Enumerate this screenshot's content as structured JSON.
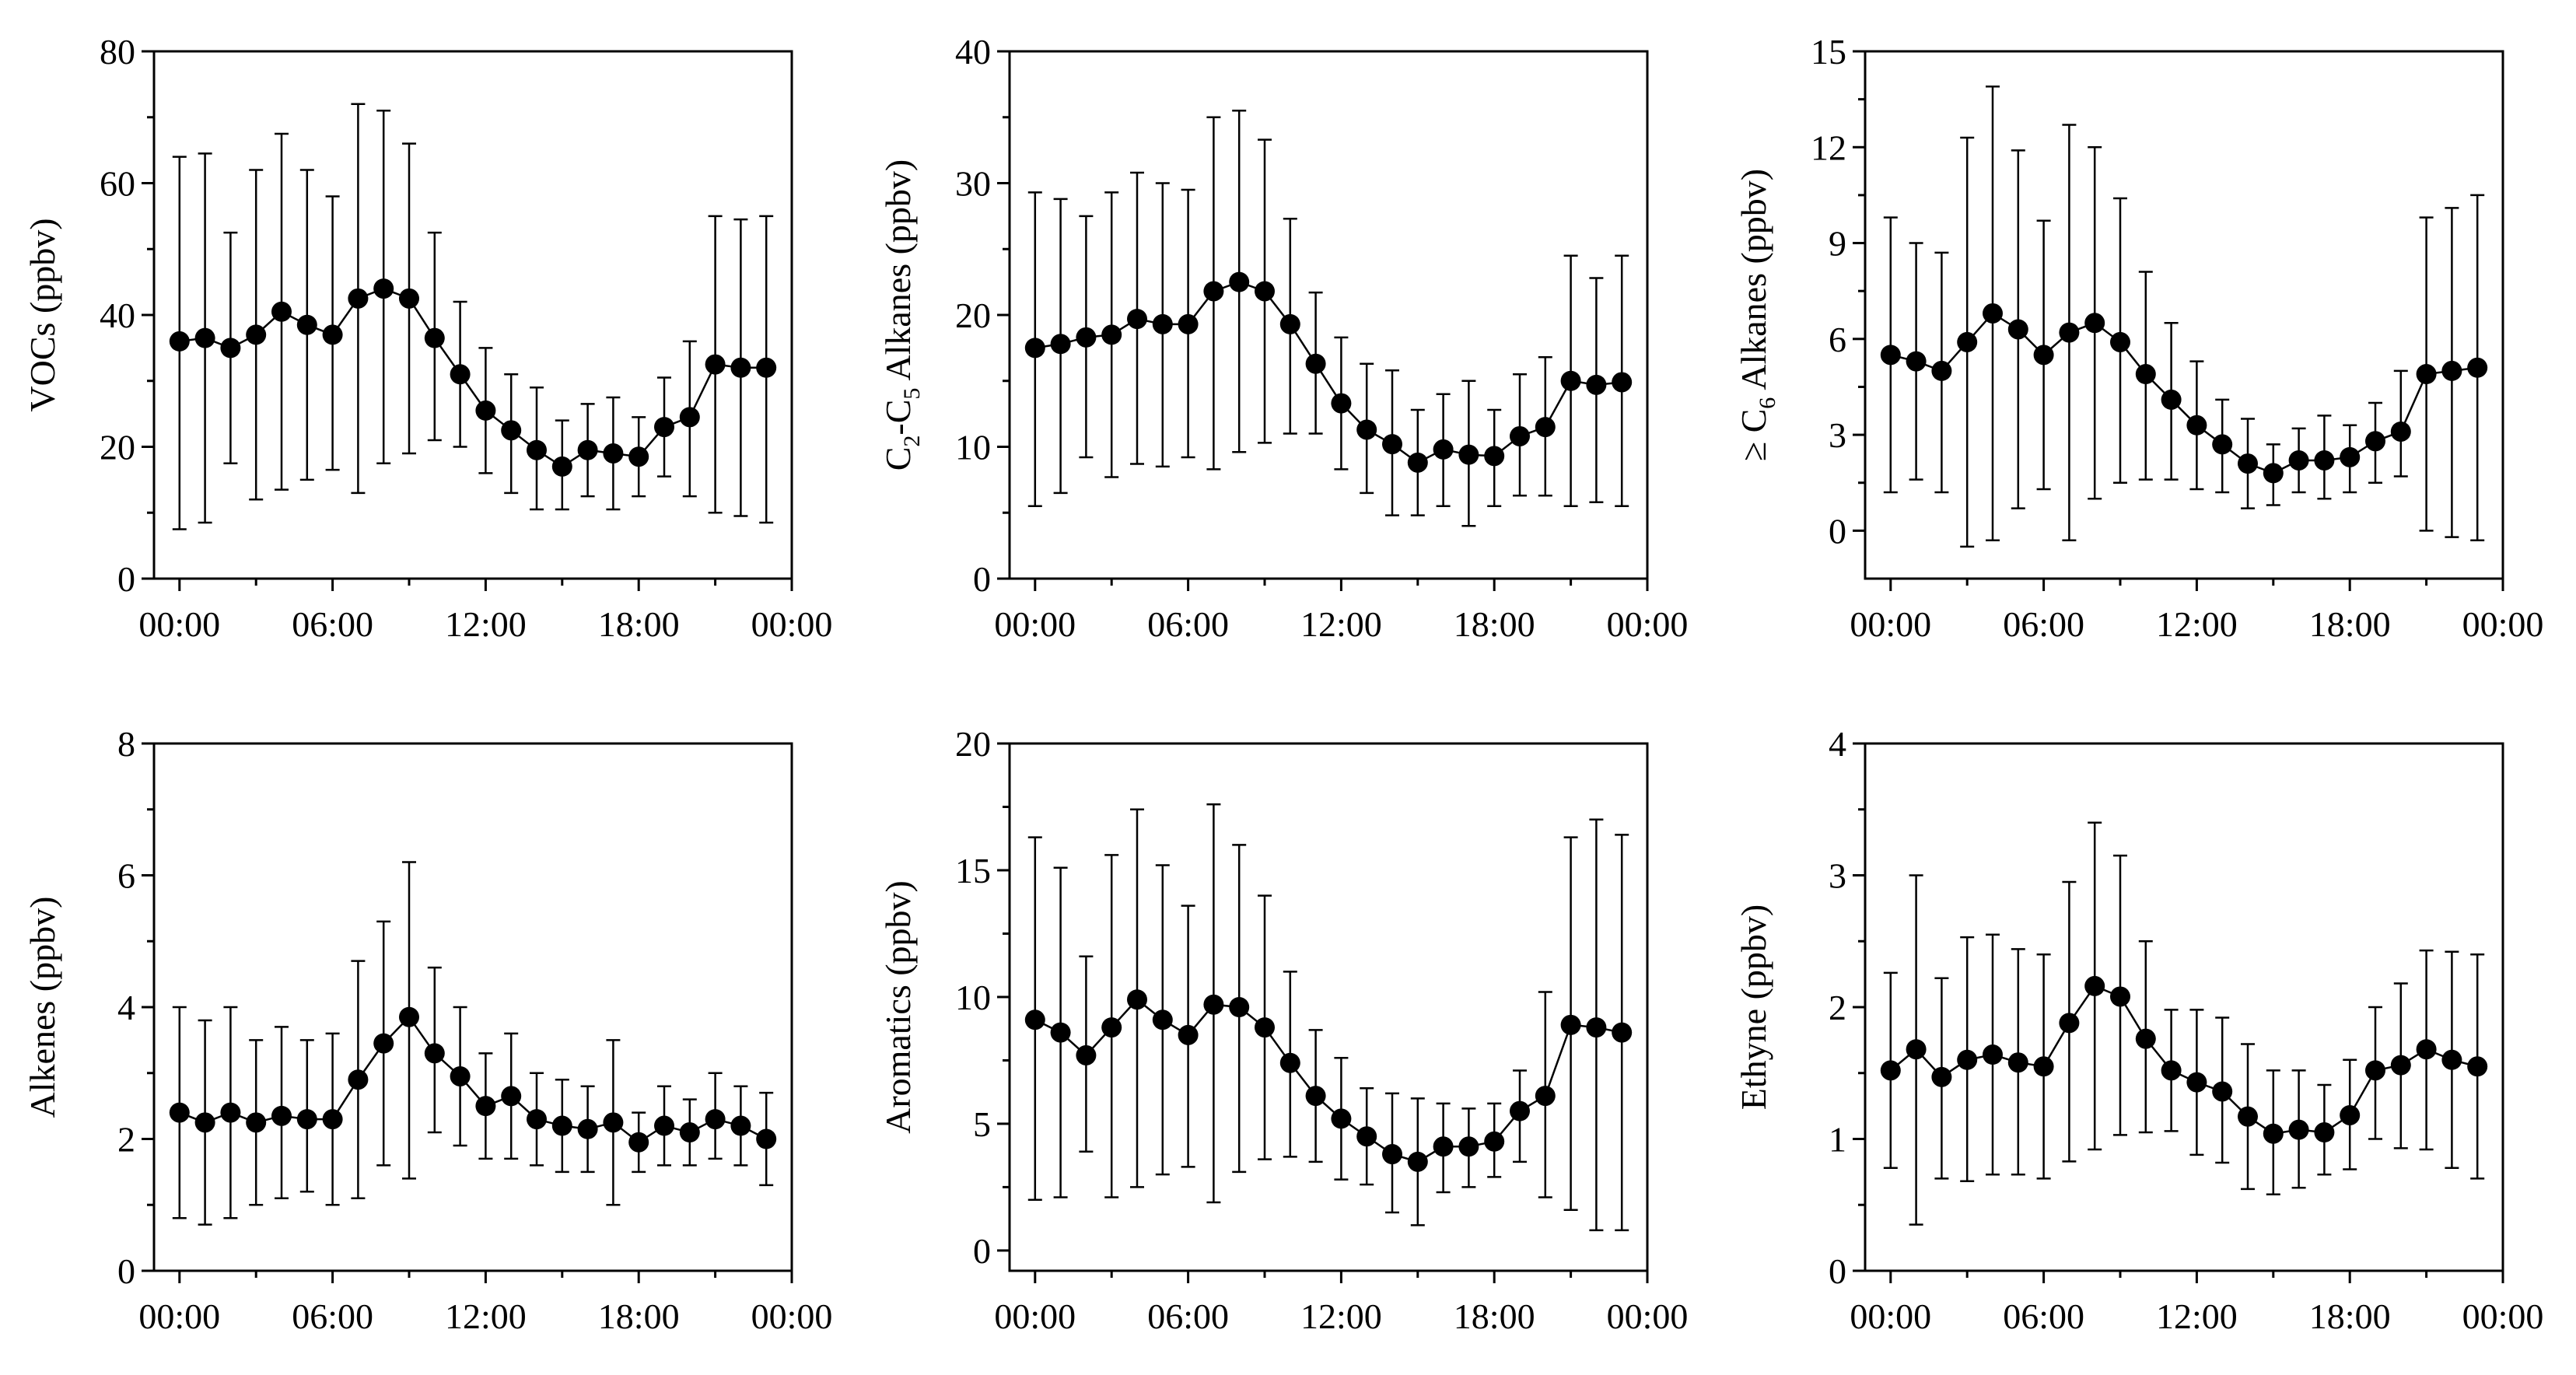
{
  "figure": {
    "x_tick_labels": [
      "00:00",
      "06:00",
      "12:00",
      "18:00",
      "00:00"
    ],
    "series_color": "#000000"
  },
  "chart_data": [
    {
      "type": "line",
      "ylabel": "VOCs (ppbv)",
      "xlabel": "",
      "xlim": [
        -1,
        24
      ],
      "ylim": [
        0,
        80
      ],
      "yticks": [
        0,
        20,
        40,
        60,
        80
      ],
      "xticks": [
        0,
        6,
        12,
        18,
        24
      ],
      "x": [
        0,
        1,
        2,
        3,
        4,
        5,
        6,
        7,
        8,
        9,
        10,
        11,
        12,
        13,
        14,
        15,
        16,
        17,
        18,
        19,
        20,
        21,
        22,
        23
      ],
      "values": [
        36,
        36.5,
        35,
        37,
        40.5,
        38.5,
        37,
        42.5,
        44,
        42.5,
        36.5,
        31,
        25.5,
        22.5,
        19.5,
        17,
        19.5,
        19,
        18.5,
        23,
        24.5,
        32.5,
        32,
        32
      ],
      "err_low": [
        7.5,
        8.5,
        17.5,
        12,
        13.5,
        15,
        16.5,
        13,
        17.5,
        19,
        21,
        20,
        16,
        13,
        10.5,
        10.5,
        12.5,
        10.5,
        12.5,
        15.5,
        12.5,
        10,
        9.5,
        8.5
      ],
      "err_high": [
        64,
        64.5,
        52.5,
        62,
        67.5,
        62,
        58,
        72,
        71,
        66,
        52.5,
        42,
        35,
        31,
        29,
        24,
        26.5,
        27.5,
        24.5,
        30.5,
        36,
        55,
        54.5,
        55
      ]
    },
    {
      "type": "line",
      "ylabel": "C2-C5 Alkanes (ppbv)",
      "ylabel_parts": {
        "c1": "C",
        "s1": "2",
        "mid": "-C",
        "s2": "5",
        "rest": " Alkanes (ppbv)"
      },
      "xlabel": "",
      "xlim": [
        -1,
        24
      ],
      "ylim": [
        0,
        40
      ],
      "yticks": [
        0,
        10,
        20,
        30,
        40
      ],
      "xticks": [
        0,
        6,
        12,
        18,
        24
      ],
      "x": [
        0,
        1,
        2,
        3,
        4,
        5,
        6,
        7,
        8,
        9,
        10,
        11,
        12,
        13,
        14,
        15,
        16,
        17,
        18,
        19,
        20,
        21,
        22,
        23
      ],
      "values": [
        17.5,
        17.8,
        18.3,
        18.5,
        19.7,
        19.3,
        19.3,
        21.8,
        22.5,
        21.8,
        19.3,
        16.3,
        13.3,
        11.3,
        10.2,
        8.8,
        9.8,
        9.4,
        9.3,
        10.8,
        11.5,
        15,
        14.7,
        14.9
      ],
      "err_low": [
        5.5,
        6.5,
        9.2,
        7.7,
        8.7,
        8.5,
        9.2,
        8.3,
        9.6,
        10.3,
        11,
        11,
        8.3,
        6.5,
        4.8,
        4.8,
        5.5,
        4,
        5.5,
        6.3,
        6.3,
        5.5,
        5.8,
        5.5
      ],
      "err_high": [
        29.3,
        28.8,
        27.5,
        29.3,
        30.8,
        30,
        29.5,
        35,
        35.5,
        33.3,
        27.3,
        21.7,
        18.3,
        16.3,
        15.8,
        12.8,
        14,
        15,
        12.8,
        15.5,
        16.8,
        24.5,
        22.8,
        24.5
      ]
    },
    {
      "type": "line",
      "ylabel": "≥ C6 Alkanes (ppbv)",
      "ylabel_parts": {
        "c1": "≥ C",
        "s1": "6",
        "rest": " Alkanes (ppbv)"
      },
      "xlabel": "",
      "xlim": [
        -1,
        24
      ],
      "ylim": [
        -1.5,
        15
      ],
      "yticks": [
        0,
        3,
        6,
        9,
        12,
        15
      ],
      "xticks": [
        0,
        6,
        12,
        18,
        24
      ],
      "x": [
        0,
        1,
        2,
        3,
        4,
        5,
        6,
        7,
        8,
        9,
        10,
        11,
        12,
        13,
        14,
        15,
        16,
        17,
        18,
        19,
        20,
        21,
        22,
        23
      ],
      "values": [
        5.5,
        5.3,
        5,
        5.9,
        6.8,
        6.3,
        5.5,
        6.2,
        6.5,
        5.9,
        4.9,
        4.1,
        3.3,
        2.7,
        2.1,
        1.8,
        2.2,
        2.2,
        2.3,
        2.8,
        3.1,
        4.9,
        5,
        5.1
      ],
      "err_low": [
        1.2,
        1.6,
        1.2,
        -0.5,
        -0.3,
        0.7,
        1.3,
        -0.3,
        1,
        1.5,
        1.6,
        1.6,
        1.3,
        1.2,
        0.7,
        0.8,
        1.2,
        1,
        1.2,
        1.5,
        1.7,
        0,
        -0.2,
        -0.3
      ],
      "err_high": [
        9.8,
        9,
        8.7,
        12.3,
        13.9,
        11.9,
        9.7,
        12.7,
        12,
        10.4,
        8.1,
        6.5,
        5.3,
        4.1,
        3.5,
        2.7,
        3.2,
        3.6,
        3.3,
        4,
        5,
        9.8,
        10.1,
        10.5
      ]
    },
    {
      "type": "line",
      "ylabel": "Alkenes (ppbv)",
      "xlabel": "",
      "xlim": [
        -1,
        24
      ],
      "ylim": [
        0,
        8
      ],
      "yticks": [
        0,
        2,
        4,
        6,
        8
      ],
      "xticks": [
        0,
        6,
        12,
        18,
        24
      ],
      "x": [
        0,
        1,
        2,
        3,
        4,
        5,
        6,
        7,
        8,
        9,
        10,
        11,
        12,
        13,
        14,
        15,
        16,
        17,
        18,
        19,
        20,
        21,
        22,
        23
      ],
      "values": [
        2.4,
        2.25,
        2.4,
        2.25,
        2.35,
        2.3,
        2.3,
        2.9,
        3.45,
        3.85,
        3.3,
        2.95,
        2.5,
        2.65,
        2.3,
        2.2,
        2.15,
        2.25,
        1.95,
        2.2,
        2.1,
        2.3,
        2.2,
        2
      ],
      "err_low": [
        0.8,
        0.7,
        0.8,
        1,
        1.1,
        1.2,
        1,
        1.1,
        1.6,
        1.4,
        2.1,
        1.9,
        1.7,
        1.7,
        1.6,
        1.5,
        1.5,
        1,
        1.5,
        1.6,
        1.6,
        1.7,
        1.6,
        1.3
      ],
      "err_high": [
        4,
        3.8,
        4,
        3.5,
        3.7,
        3.5,
        3.6,
        4.7,
        5.3,
        6.2,
        4.6,
        4,
        3.3,
        3.6,
        3,
        2.9,
        2.8,
        3.5,
        2.4,
        2.8,
        2.6,
        3,
        2.8,
        2.7
      ]
    },
    {
      "type": "line",
      "ylabel": "Aromatics (ppbv)",
      "xlabel": "",
      "xlim": [
        -1,
        24
      ],
      "ylim": [
        -0.8,
        20
      ],
      "yticks": [
        0,
        5,
        10,
        15,
        20
      ],
      "xticks": [
        0,
        6,
        12,
        18,
        24
      ],
      "x": [
        0,
        1,
        2,
        3,
        4,
        5,
        6,
        7,
        8,
        9,
        10,
        11,
        12,
        13,
        14,
        15,
        16,
        17,
        18,
        19,
        20,
        21,
        22,
        23
      ],
      "values": [
        9.1,
        8.6,
        7.7,
        8.8,
        9.9,
        9.1,
        8.5,
        9.7,
        9.6,
        8.8,
        7.4,
        6.1,
        5.2,
        4.5,
        3.8,
        3.5,
        4.1,
        4.1,
        4.3,
        5.5,
        6.1,
        8.9,
        8.8,
        8.6
      ],
      "err_low": [
        2,
        2.1,
        3.9,
        2.1,
        2.5,
        3,
        3.3,
        1.9,
        3.1,
        3.6,
        3.7,
        3.5,
        2.8,
        2.6,
        1.5,
        1,
        2.3,
        2.5,
        2.9,
        3.5,
        2.1,
        1.6,
        0.8,
        0.8
      ],
      "err_high": [
        16.3,
        15.1,
        11.6,
        15.6,
        17.4,
        15.2,
        13.6,
        17.6,
        16,
        14,
        11,
        8.7,
        7.6,
        6.4,
        6.2,
        6,
        5.8,
        5.6,
        5.8,
        7.1,
        10.2,
        16.3,
        17,
        16.4
      ]
    },
    {
      "type": "line",
      "ylabel": "Ethyne (ppbv)",
      "xlabel": "",
      "xlim": [
        -1,
        24
      ],
      "ylim": [
        0,
        4
      ],
      "yticks": [
        0,
        1,
        2,
        3,
        4
      ],
      "xticks": [
        0,
        6,
        12,
        18,
        24
      ],
      "x": [
        0,
        1,
        2,
        3,
        4,
        5,
        6,
        7,
        8,
        9,
        10,
        11,
        12,
        13,
        14,
        15,
        16,
        17,
        18,
        19,
        20,
        21,
        22,
        23
      ],
      "values": [
        1.52,
        1.68,
        1.47,
        1.6,
        1.64,
        1.58,
        1.55,
        1.88,
        2.16,
        2.08,
        1.76,
        1.52,
        1.43,
        1.36,
        1.17,
        1.04,
        1.07,
        1.05,
        1.18,
        1.52,
        1.56,
        1.68,
        1.6,
        1.55
      ],
      "err_low": [
        0.78,
        0.35,
        0.7,
        0.68,
        0.73,
        0.73,
        0.7,
        0.83,
        0.92,
        1.03,
        1.05,
        1.06,
        0.88,
        0.82,
        0.62,
        0.58,
        0.63,
        0.73,
        0.77,
        1,
        0.93,
        0.92,
        0.78,
        0.7
      ],
      "err_high": [
        2.26,
        3,
        2.22,
        2.53,
        2.55,
        2.44,
        2.4,
        2.95,
        3.4,
        3.15,
        2.5,
        1.98,
        1.98,
        1.92,
        1.72,
        1.52,
        1.52,
        1.41,
        1.6,
        2,
        2.18,
        2.43,
        2.42,
        2.4
      ]
    }
  ]
}
